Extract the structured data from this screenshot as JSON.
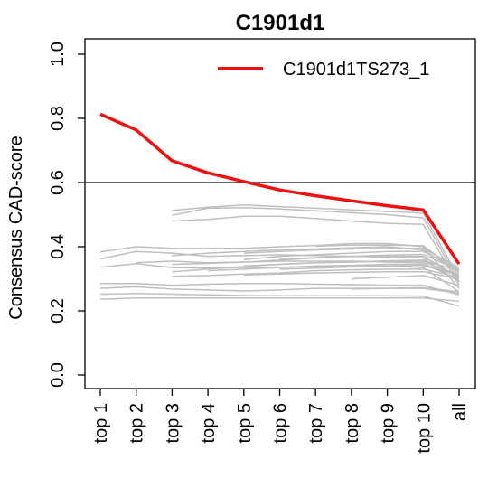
{
  "chart_data": {
    "type": "line",
    "title": "C1901d1",
    "xlabel": "",
    "ylabel": "Consensus CAD-score",
    "categories": [
      "top 1",
      "top 2",
      "top 3",
      "top 4",
      "top 5",
      "top 6",
      "top 7",
      "top 8",
      "top 9",
      "top 10",
      "all"
    ],
    "yticks": [
      "0.0",
      "0.2",
      "0.4",
      "0.6",
      "0.8",
      "1.0"
    ],
    "ylim": [
      0,
      1
    ],
    "threshold": 0.6,
    "legend_position": "top-right",
    "highlight": {
      "name": "C1901d1TS273_1",
      "color": "#ee1111",
      "values": [
        0.813,
        0.764,
        0.668,
        0.63,
        0.603,
        0.577,
        0.559,
        0.543,
        0.528,
        0.515,
        0.346
      ]
    },
    "background_color": "#bfbfbf",
    "background_series": [
      {
        "values": [
          null,
          null,
          0.513,
          0.523,
          0.53,
          0.525,
          0.52,
          0.515,
          0.51,
          0.505,
          0.3
        ]
      },
      {
        "values": [
          null,
          null,
          0.498,
          0.52,
          0.522,
          0.518,
          0.512,
          0.506,
          0.5,
          0.49,
          0.29
        ]
      },
      {
        "values": [
          null,
          null,
          0.48,
          0.485,
          0.495,
          0.495,
          0.488,
          0.48,
          0.473,
          0.47,
          0.28
        ]
      },
      {
        "values": [
          0.384,
          0.4,
          0.395,
          0.395,
          0.395,
          0.4,
          0.404,
          0.41,
          0.41,
          0.4,
          0.27
        ]
      },
      {
        "values": [
          0.336,
          0.347,
          0.335,
          0.333,
          0.335,
          0.336,
          0.338,
          0.34,
          0.34,
          0.335,
          0.26
        ]
      },
      {
        "values": [
          0.285,
          0.285,
          0.28,
          0.283,
          0.285,
          0.285,
          0.283,
          0.282,
          0.28,
          0.28,
          0.25
        ]
      },
      {
        "values": [
          0.252,
          0.254,
          0.252,
          0.25,
          0.248,
          0.247,
          0.247,
          0.247,
          0.247,
          0.246,
          0.215
        ]
      },
      {
        "values": [
          0.236,
          0.24,
          0.24,
          0.24,
          0.24,
          0.24,
          0.24,
          0.24,
          0.24,
          0.24,
          0.23
        ]
      },
      {
        "values": [
          0.27,
          0.275,
          0.268,
          0.265,
          0.262,
          0.265,
          0.27,
          0.27,
          0.27,
          0.272,
          0.26
        ]
      },
      {
        "values": [
          0.362,
          0.385,
          0.38,
          0.37,
          0.372,
          0.375,
          0.372,
          0.37,
          0.368,
          0.365,
          0.29
        ]
      },
      {
        "values": [
          null,
          0.35,
          0.355,
          0.35,
          0.352,
          0.355,
          0.355,
          0.355,
          0.352,
          0.35,
          0.295
        ]
      },
      {
        "values": [
          null,
          null,
          0.345,
          0.348,
          0.352,
          0.358,
          0.365,
          0.37,
          0.37,
          0.37,
          0.305
        ]
      },
      {
        "values": [
          null,
          null,
          0.322,
          0.33,
          0.338,
          0.345,
          0.35,
          0.352,
          0.355,
          0.355,
          0.31
        ]
      },
      {
        "values": [
          null,
          null,
          0.308,
          0.31,
          0.315,
          0.318,
          0.325,
          0.328,
          0.33,
          0.33,
          0.305
        ]
      },
      {
        "values": [
          null,
          null,
          0.372,
          0.38,
          0.385,
          0.39,
          0.393,
          0.397,
          0.4,
          0.39,
          0.32
        ]
      },
      {
        "values": [
          null,
          null,
          null,
          0.325,
          0.33,
          0.335,
          0.34,
          0.342,
          0.345,
          0.345,
          0.315
        ]
      },
      {
        "values": [
          null,
          null,
          null,
          null,
          0.36,
          0.37,
          0.375,
          0.38,
          0.385,
          0.385,
          0.33
        ]
      },
      {
        "values": [
          null,
          null,
          null,
          null,
          0.38,
          0.385,
          0.39,
          0.393,
          0.395,
          0.395,
          0.335
        ]
      },
      {
        "values": [
          null,
          null,
          null,
          null,
          0.312,
          0.315,
          0.318,
          0.32,
          0.322,
          0.322,
          0.3
        ]
      },
      {
        "values": [
          null,
          null,
          null,
          null,
          0.34,
          0.345,
          0.35,
          0.352,
          0.356,
          0.358,
          0.325
        ]
      },
      {
        "values": [
          null,
          null,
          null,
          null,
          null,
          0.362,
          0.366,
          0.37,
          0.374,
          0.376,
          0.325
        ]
      },
      {
        "values": [
          null,
          null,
          null,
          null,
          null,
          0.33,
          0.333,
          0.337,
          0.34,
          0.342,
          0.31
        ]
      },
      {
        "values": [
          null,
          null,
          null,
          null,
          null,
          null,
          0.402,
          0.405,
          0.405,
          0.403,
          0.32
        ]
      },
      {
        "values": [
          null,
          null,
          null,
          null,
          null,
          null,
          null,
          0.3,
          0.305,
          0.31,
          0.28
        ]
      },
      {
        "values": [
          null,
          null,
          null,
          null,
          null,
          null,
          null,
          0.268,
          0.27,
          0.27,
          0.255
        ]
      }
    ]
  }
}
